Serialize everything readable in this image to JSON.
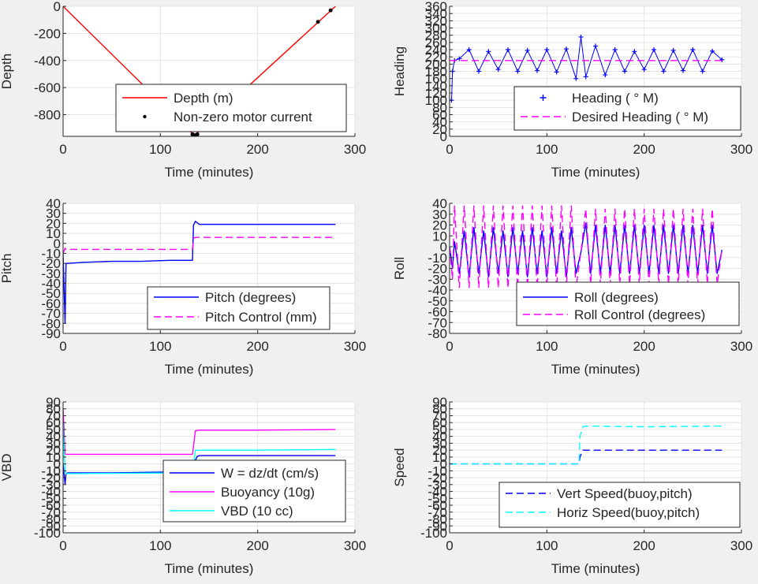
{
  "colors": {
    "background": "#f0f0f0",
    "axes_bg": "#ffffff",
    "grid": "#e3e3e3",
    "red": "#ff0000",
    "blue": "#0000ff",
    "magenta": "#ff00ff",
    "cyan": "#00ffff",
    "black": "#000000"
  },
  "chart_data": [
    {
      "id": "depth",
      "type": "line",
      "xlabel": "Time (minutes)",
      "ylabel": "Depth",
      "xlim": [
        0,
        300
      ],
      "ylim": [
        -960,
        0
      ],
      "xticks": [
        0,
        100,
        200,
        300
      ],
      "yticks": [
        0,
        -200,
        -400,
        -600,
        -800
      ],
      "grid": true,
      "legend_position": "bottom-center",
      "series": [
        {
          "name": "Depth (m)",
          "style": "solid",
          "color": "#ff0000",
          "x": [
            0,
            135,
            280
          ],
          "y": [
            0,
            -955,
            0
          ]
        },
        {
          "name": "Non-zero motor current",
          "style": "points",
          "color": "#000000",
          "x": [
            133,
            134,
            135,
            136,
            137,
            138,
            262,
            275
          ],
          "y": [
            -945,
            -950,
            -955,
            -955,
            -950,
            -945,
            -115,
            -30
          ]
        }
      ]
    },
    {
      "id": "heading",
      "type": "line",
      "xlabel": "Time (minutes)",
      "ylabel": "Heading",
      "xlim": [
        0,
        300
      ],
      "ylim": [
        0,
        360
      ],
      "xticks": [
        0,
        100,
        200,
        300
      ],
      "yticks": [
        0,
        20,
        40,
        60,
        80,
        100,
        120,
        140,
        160,
        180,
        200,
        220,
        240,
        260,
        280,
        300,
        320,
        340,
        360
      ],
      "grid": true,
      "legend_position": "bottom-right",
      "series": [
        {
          "name": "Heading (   ° M)",
          "style": "plus",
          "color": "#0000ff",
          "x": [
            0,
            2,
            3,
            5,
            10,
            20,
            30,
            40,
            50,
            60,
            70,
            80,
            90,
            100,
            110,
            120,
            130,
            135,
            140,
            150,
            160,
            170,
            180,
            190,
            200,
            210,
            220,
            230,
            240,
            250,
            260,
            270,
            280
          ],
          "y": [
            100,
            100,
            180,
            210,
            215,
            240,
            180,
            235,
            185,
            240,
            180,
            238,
            182,
            240,
            178,
            242,
            160,
            275,
            165,
            250,
            170,
            240,
            180,
            235,
            185,
            240,
            180,
            238,
            182,
            240,
            180,
            236,
            212
          ]
        },
        {
          "name": "Desired Heading (     ° M)",
          "style": "dashed",
          "color": "#ff00ff",
          "x": [
            0,
            5,
            280
          ],
          "y": [
            210,
            210,
            210
          ]
        }
      ]
    },
    {
      "id": "pitch",
      "type": "line",
      "xlabel": "Time (minutes)",
      "ylabel": "Pitch",
      "xlim": [
        0,
        300
      ],
      "ylim": [
        -90,
        40
      ],
      "xticks": [
        0,
        100,
        200,
        300
      ],
      "yticks": [
        40,
        30,
        20,
        10,
        0,
        -10,
        -20,
        -30,
        -40,
        -50,
        -60,
        -70,
        -80,
        -90
      ],
      "grid": true,
      "legend_position": "bottom-right",
      "series": [
        {
          "name": "Pitch (degrees)",
          "style": "solid",
          "color": "#0000ff",
          "x": [
            0,
            2,
            3,
            5,
            20,
            50,
            80,
            110,
            133,
            134,
            136,
            140,
            180,
            220,
            260,
            280
          ],
          "y": [
            -10,
            -80,
            -20,
            -20,
            -19,
            -18,
            -18,
            -17,
            -17,
            18,
            22,
            19,
            19,
            19,
            19,
            19
          ]
        },
        {
          "name": "Pitch Control (mm)",
          "style": "dashed",
          "color": "#ff00ff",
          "x": [
            0,
            2,
            3,
            10,
            133,
            134,
            136,
            280
          ],
          "y": [
            -10,
            -5,
            -6,
            -6,
            -6,
            5,
            6,
            6
          ]
        }
      ]
    },
    {
      "id": "roll",
      "type": "line",
      "xlabel": "Time (minutes)",
      "ylabel": "Roll",
      "xlim": [
        0,
        300
      ],
      "ylim": [
        -80,
        40
      ],
      "xticks": [
        0,
        100,
        200,
        300
      ],
      "yticks": [
        40,
        30,
        20,
        10,
        0,
        -10,
        -20,
        -30,
        -40,
        -50,
        -60,
        -70,
        -80
      ],
      "grid": true,
      "legend_position": "bottom-right",
      "series": [
        {
          "name": "Roll (degrees)",
          "style": "solid",
          "color": "#0000ff",
          "x": [
            0,
            3,
            5,
            10,
            15,
            20,
            25,
            30,
            35,
            40,
            45,
            50,
            55,
            60,
            65,
            70,
            75,
            80,
            85,
            90,
            95,
            100,
            105,
            110,
            115,
            120,
            125,
            130,
            135,
            140,
            145,
            150,
            155,
            160,
            165,
            170,
            175,
            180,
            185,
            190,
            195,
            200,
            205,
            210,
            215,
            220,
            225,
            230,
            235,
            240,
            245,
            250,
            255,
            260,
            265,
            270,
            275,
            280
          ],
          "y": [
            0,
            -20,
            5,
            -25,
            15,
            -28,
            18,
            -25,
            15,
            -28,
            18,
            -25,
            15,
            -28,
            18,
            -25,
            15,
            -28,
            18,
            -25,
            15,
            -28,
            18,
            -25,
            15,
            -28,
            18,
            -25,
            -5,
            22,
            -25,
            20,
            -25,
            20,
            -25,
            20,
            -25,
            20,
            -25,
            20,
            -25,
            20,
            -25,
            20,
            -25,
            20,
            -25,
            20,
            -25,
            20,
            -25,
            20,
            -25,
            20,
            -25,
            20,
            -25,
            -3
          ]
        },
        {
          "name": "Roll Control (degrees)",
          "style": "dashed",
          "color": "#ff00ff",
          "x": [
            0,
            3,
            5,
            10,
            15,
            20,
            25,
            30,
            35,
            40,
            45,
            50,
            55,
            60,
            65,
            70,
            75,
            80,
            85,
            90,
            95,
            100,
            105,
            110,
            115,
            120,
            125,
            130,
            135,
            140,
            145,
            150,
            155,
            160,
            165,
            170,
            175,
            180,
            185,
            190,
            195,
            200,
            205,
            210,
            215,
            220,
            225,
            230,
            235,
            240,
            245,
            250,
            255,
            260,
            265,
            270,
            275,
            280
          ],
          "y": [
            0,
            -30,
            38,
            -38,
            38,
            -38,
            38,
            -38,
            38,
            -38,
            38,
            -38,
            38,
            -38,
            38,
            -38,
            38,
            -38,
            38,
            -38,
            38,
            -38,
            38,
            -38,
            38,
            -38,
            38,
            -38,
            -5,
            35,
            -35,
            35,
            -35,
            35,
            -35,
            35,
            -35,
            35,
            -35,
            35,
            -35,
            35,
            -35,
            35,
            -35,
            35,
            -35,
            35,
            -35,
            35,
            -35,
            35,
            -35,
            35,
            -35,
            35,
            -35,
            -2
          ]
        }
      ]
    },
    {
      "id": "vbd",
      "type": "line",
      "xlabel": "Time (minutes)",
      "ylabel": "VBD",
      "xlim": [
        0,
        300
      ],
      "ylim": [
        -100,
        90
      ],
      "xticks": [
        0,
        100,
        200,
        300
      ],
      "yticks": [
        90,
        80,
        70,
        60,
        50,
        40,
        30,
        20,
        10,
        0,
        -10,
        -20,
        -30,
        -40,
        -50,
        -60,
        -70,
        -80,
        -90,
        -100
      ],
      "grid": true,
      "legend_position": "bottom-right",
      "series": [
        {
          "name": "W = dz/dt (cm/s)",
          "style": "solid",
          "color": "#0000ff",
          "x": [
            0,
            2,
            3,
            5,
            50,
            100,
            133,
            134,
            138,
            140,
            200,
            280
          ],
          "y": [
            0,
            -30,
            -14,
            -13,
            -13,
            -12,
            -12,
            0,
            11,
            12,
            12,
            12
          ]
        },
        {
          "name": "Buoyancy (10g)",
          "style": "solid",
          "color": "#ff00ff",
          "x": [
            0,
            2,
            3,
            5,
            133,
            136,
            140,
            200,
            280
          ],
          "y": [
            80,
            15,
            14,
            14,
            14,
            48,
            49,
            49,
            50
          ]
        },
        {
          "name": "VBD (10 cc)",
          "style": "solid",
          "color": "#00ffff",
          "x": [
            0,
            2,
            3,
            5,
            133,
            136,
            140,
            200,
            280
          ],
          "y": [
            60,
            -10,
            -14,
            -14,
            -13,
            20,
            20,
            20,
            21
          ]
        }
      ]
    },
    {
      "id": "speed",
      "type": "line",
      "xlabel": "Time (minutes)",
      "ylabel": "Speed",
      "xlim": [
        0,
        300
      ],
      "ylim": [
        -100,
        90
      ],
      "xticks": [
        0,
        100,
        200,
        300
      ],
      "yticks": [
        90,
        80,
        70,
        60,
        50,
        40,
        30,
        20,
        10,
        0,
        -10,
        -20,
        -30,
        -40,
        -50,
        -60,
        -70,
        -80,
        -90,
        -100
      ],
      "grid": true,
      "legend_position": "bottom-right",
      "series": [
        {
          "name": "Vert Speed(buoy,pitch)",
          "style": "dashed",
          "color": "#0000ff",
          "x": [
            0,
            133,
            134,
            137,
            140,
            200,
            280
          ],
          "y": [
            0,
            0,
            10,
            20,
            20,
            20,
            20
          ]
        },
        {
          "name": "Horiz Speed(buoy,pitch)",
          "style": "dashed",
          "color": "#00ffff",
          "x": [
            0,
            133,
            134,
            137,
            140,
            200,
            280
          ],
          "y": [
            0,
            0,
            40,
            54,
            55,
            54,
            55
          ]
        }
      ]
    }
  ]
}
